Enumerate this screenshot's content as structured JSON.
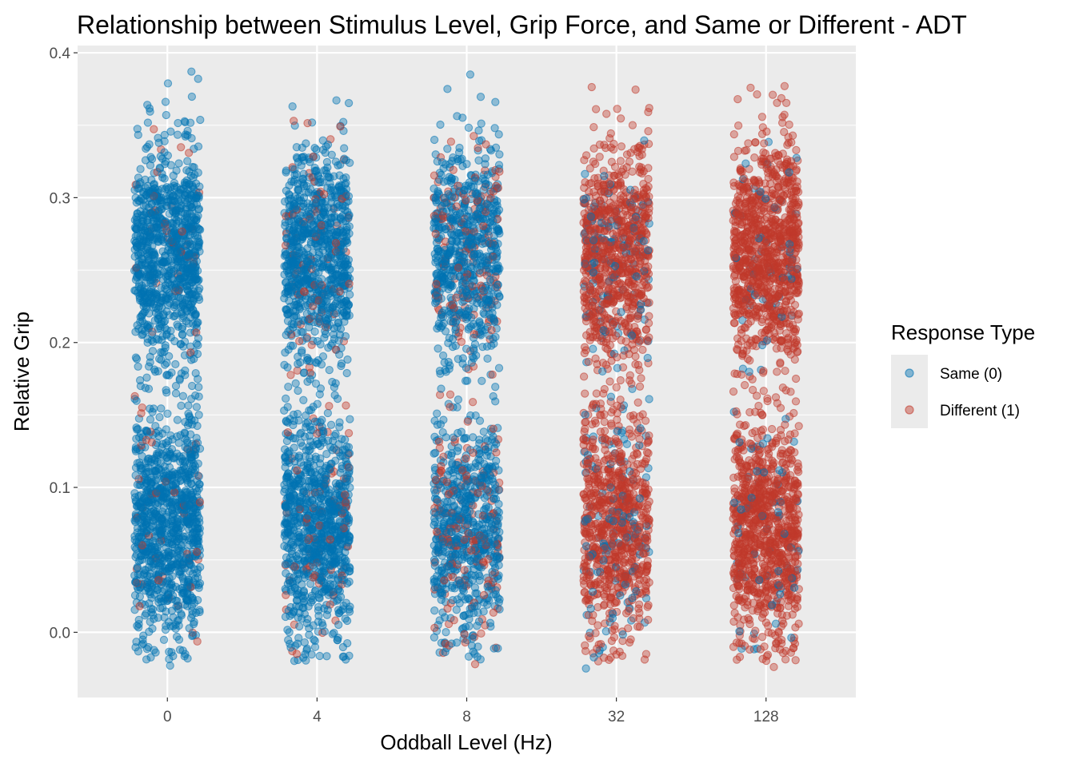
{
  "chart_data": {
    "type": "scatter",
    "title": "Relationship between Stimulus Level, Grip Force, and Same or Different - ADT",
    "xlabel": "Oddball Level (Hz)",
    "ylabel": "Relative Grip",
    "categories": [
      "0",
      "4",
      "8",
      "32",
      "128"
    ],
    "y_ticks": [
      "0.0",
      "0.1",
      "0.2",
      "0.3",
      "0.4"
    ],
    "ylim": [
      -0.045,
      0.405
    ],
    "grid": true,
    "jitter": true,
    "legend": {
      "title": "Response Type",
      "position": "right",
      "entries": [
        {
          "label": "Same (0)",
          "color": "#0072B2"
        },
        {
          "label": "Different (1)",
          "color": "#C0392B"
        }
      ]
    },
    "series": [
      {
        "name": "Same (0)",
        "color": "#0072B2",
        "approx_points_per_category": [
          1900,
          1700,
          1250,
          250,
          120
        ],
        "y_range": [
          -0.02,
          0.38
        ]
      },
      {
        "name": "Different (1)",
        "color": "#C0392B",
        "approx_points_per_category": [
          80,
          160,
          300,
          1500,
          1850
        ],
        "y_range": [
          -0.02,
          0.38
        ]
      }
    ],
    "notable_points": [
      {
        "x": "0",
        "y": 0.387,
        "series": "Same (0)"
      },
      {
        "x": "0",
        "y": 0.382,
        "series": "Same (0)"
      },
      {
        "x": "4",
        "y": 0.363,
        "series": "Same (0)"
      },
      {
        "x": "4",
        "y": 0.353,
        "series": "Different (1)"
      },
      {
        "x": "8",
        "y": 0.385,
        "series": "Same (0)"
      },
      {
        "x": "8",
        "y": 0.375,
        "series": "Same (0)"
      },
      {
        "x": "8",
        "y": -0.022,
        "series": "Different (1)"
      },
      {
        "x": "32",
        "y": 0.35,
        "series": "Different (1)"
      },
      {
        "x": "32",
        "y": -0.025,
        "series": "Same (0)"
      },
      {
        "x": "128",
        "y": 0.377,
        "series": "Different (1)"
      },
      {
        "x": "128",
        "y": 0.368,
        "series": "Different (1)"
      },
      {
        "x": "128",
        "y": -0.024,
        "series": "Different (1)"
      },
      {
        "x": "0",
        "y": -0.023,
        "series": "Same (0)"
      }
    ],
    "point_alpha": 0.4
  }
}
